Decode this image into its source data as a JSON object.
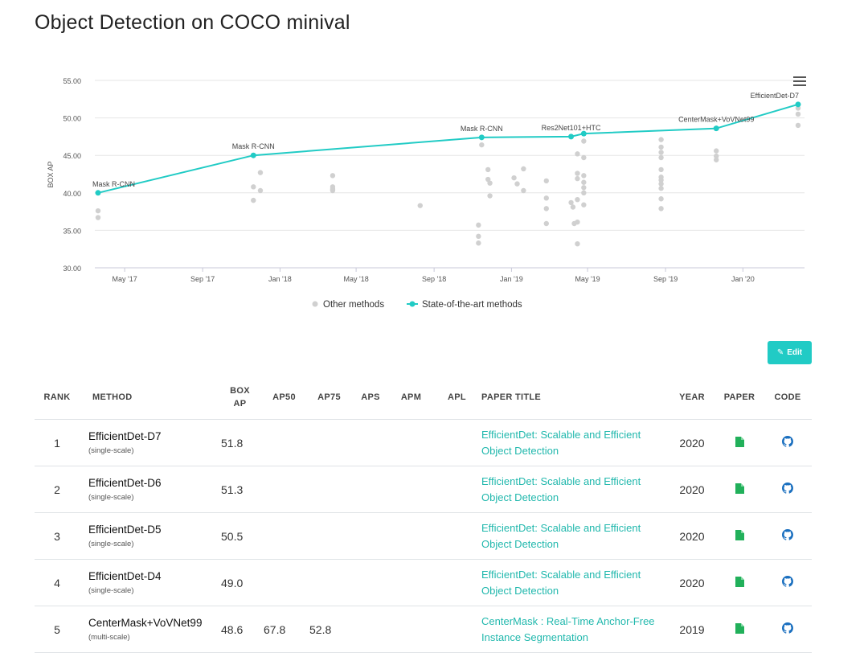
{
  "title": "Object Detection on COCO minival",
  "colors": {
    "accent": "#21cbc5",
    "link": "#21b8ad",
    "other": "#d0d0d0",
    "paper_icon": "#21b05a",
    "code_icon": "#1a6fbf"
  },
  "chart_data": {
    "type": "line",
    "ylabel": "BOX AP",
    "xlabel": "",
    "ylim": [
      30,
      55
    ],
    "yticks": [
      "30.00",
      "35.00",
      "40.00",
      "45.00",
      "50.00",
      "55.00"
    ],
    "xticks": [
      "May '17",
      "Sep '17",
      "Jan '18",
      "May '18",
      "Sep '18",
      "Jan '19",
      "May '19",
      "Sep '19",
      "Jan '20"
    ],
    "xtick_dates": [
      "2017-05-01",
      "2017-09-01",
      "2018-01-01",
      "2018-05-01",
      "2018-09-01",
      "2019-01-01",
      "2019-05-01",
      "2019-09-01",
      "2020-01-01"
    ],
    "xlim": [
      "2017-03-20",
      "2020-03-28"
    ],
    "legend_position": "bottom",
    "series": [
      {
        "name": "State-of-the-art methods",
        "points": [
          {
            "x": "2017-03-20",
            "y": 40.0,
            "label": "Mask R-CNN"
          },
          {
            "x": "2017-11-20",
            "y": 45.0,
            "label": "Mask R-CNN"
          },
          {
            "x": "2018-11-15",
            "y": 47.4,
            "label": "Mask R-CNN"
          },
          {
            "x": "2019-04-05",
            "y": 47.5,
            "label": "Res2Net101+HTC"
          },
          {
            "x": "2019-04-25",
            "y": 47.9,
            "label": ""
          },
          {
            "x": "2019-11-20",
            "y": 48.6,
            "label": "CenterMask+VoVNet99"
          },
          {
            "x": "2020-03-28",
            "y": 51.8,
            "label": "EfficientDet-D7"
          }
        ]
      },
      {
        "name": "Other methods",
        "points": [
          {
            "x": "2017-03-20",
            "y": 37.6
          },
          {
            "x": "2017-03-20",
            "y": 36.7
          },
          {
            "x": "2017-11-20",
            "y": 40.8
          },
          {
            "x": "2017-11-20",
            "y": 39.0
          },
          {
            "x": "2017-12-01",
            "y": 42.7
          },
          {
            "x": "2017-12-01",
            "y": 40.3
          },
          {
            "x": "2018-03-25",
            "y": 42.3
          },
          {
            "x": "2018-03-25",
            "y": 40.8
          },
          {
            "x": "2018-03-25",
            "y": 40.5
          },
          {
            "x": "2018-03-25",
            "y": 40.3
          },
          {
            "x": "2018-08-10",
            "y": 38.3
          },
          {
            "x": "2018-11-15",
            "y": 46.4
          },
          {
            "x": "2018-11-10",
            "y": 35.7
          },
          {
            "x": "2018-11-10",
            "y": 34.2
          },
          {
            "x": "2018-11-10",
            "y": 33.3
          },
          {
            "x": "2018-11-25",
            "y": 43.1
          },
          {
            "x": "2018-11-25",
            "y": 41.8
          },
          {
            "x": "2018-11-28",
            "y": 41.3
          },
          {
            "x": "2018-11-28",
            "y": 39.6
          },
          {
            "x": "2019-01-05",
            "y": 42.0
          },
          {
            "x": "2019-01-10",
            "y": 41.2
          },
          {
            "x": "2019-01-20",
            "y": 43.2
          },
          {
            "x": "2019-01-20",
            "y": 40.3
          },
          {
            "x": "2019-02-25",
            "y": 41.6
          },
          {
            "x": "2019-02-25",
            "y": 39.3
          },
          {
            "x": "2019-02-25",
            "y": 37.9
          },
          {
            "x": "2019-02-25",
            "y": 35.9
          },
          {
            "x": "2019-04-05",
            "y": 38.7
          },
          {
            "x": "2019-04-08",
            "y": 38.1
          },
          {
            "x": "2019-04-10",
            "y": 35.9
          },
          {
            "x": "2019-04-15",
            "y": 42.6
          },
          {
            "x": "2019-04-15",
            "y": 41.9
          },
          {
            "x": "2019-04-15",
            "y": 39.1
          },
          {
            "x": "2019-04-15",
            "y": 45.2
          },
          {
            "x": "2019-04-15",
            "y": 36.1
          },
          {
            "x": "2019-04-15",
            "y": 33.2
          },
          {
            "x": "2019-04-25",
            "y": 46.9
          },
          {
            "x": "2019-04-25",
            "y": 44.7
          },
          {
            "x": "2019-04-25",
            "y": 42.3
          },
          {
            "x": "2019-04-25",
            "y": 41.4
          },
          {
            "x": "2019-04-25",
            "y": 40.7
          },
          {
            "x": "2019-04-25",
            "y": 40.0
          },
          {
            "x": "2019-04-25",
            "y": 38.4
          },
          {
            "x": "2019-08-25",
            "y": 47.1
          },
          {
            "x": "2019-08-25",
            "y": 46.1
          },
          {
            "x": "2019-08-25",
            "y": 45.4
          },
          {
            "x": "2019-08-25",
            "y": 44.7
          },
          {
            "x": "2019-08-25",
            "y": 43.1
          },
          {
            "x": "2019-08-25",
            "y": 42.1
          },
          {
            "x": "2019-08-25",
            "y": 41.7
          },
          {
            "x": "2019-08-25",
            "y": 41.2
          },
          {
            "x": "2019-08-25",
            "y": 40.6
          },
          {
            "x": "2019-08-25",
            "y": 39.2
          },
          {
            "x": "2019-08-25",
            "y": 37.9
          },
          {
            "x": "2019-11-20",
            "y": 45.6
          },
          {
            "x": "2019-11-20",
            "y": 44.9
          },
          {
            "x": "2019-11-20",
            "y": 44.4
          },
          {
            "x": "2020-03-28",
            "y": 51.3
          },
          {
            "x": "2020-03-28",
            "y": 50.5
          },
          {
            "x": "2020-03-28",
            "y": 49.0
          }
        ]
      }
    ]
  },
  "edit_label": "Edit",
  "table": {
    "headers": {
      "rank": "RANK",
      "method": "METHOD",
      "box_ap": "BOX AP",
      "ap50": "AP50",
      "ap75": "AP75",
      "aps": "APS",
      "apm": "APM",
      "apl": "APL",
      "paper_title": "PAPER TITLE",
      "year": "YEAR",
      "paper": "PAPER",
      "code": "CODE"
    },
    "rows": [
      {
        "rank": "1",
        "method": "EfficientDet-D7",
        "method_sub": "(single-scale)",
        "box_ap": "51.8",
        "ap50": "",
        "ap75": "",
        "aps": "",
        "apm": "",
        "apl": "",
        "paper_title": "EfficientDet: Scalable and Efficient Object Detection",
        "year": "2020"
      },
      {
        "rank": "2",
        "method": "EfficientDet-D6",
        "method_sub": "(single-scale)",
        "box_ap": "51.3",
        "ap50": "",
        "ap75": "",
        "aps": "",
        "apm": "",
        "apl": "",
        "paper_title": "EfficientDet: Scalable and Efficient Object Detection",
        "year": "2020"
      },
      {
        "rank": "3",
        "method": "EfficientDet-D5",
        "method_sub": "(single-scale)",
        "box_ap": "50.5",
        "ap50": "",
        "ap75": "",
        "aps": "",
        "apm": "",
        "apl": "",
        "paper_title": "EfficientDet: Scalable and Efficient Object Detection",
        "year": "2020"
      },
      {
        "rank": "4",
        "method": "EfficientDet-D4",
        "method_sub": "(single-scale)",
        "box_ap": "49.0",
        "ap50": "",
        "ap75": "",
        "aps": "",
        "apm": "",
        "apl": "",
        "paper_title": "EfficientDet: Scalable and Efficient Object Detection",
        "year": "2020"
      },
      {
        "rank": "5",
        "method": "CenterMask+VoVNet99",
        "method_sub": "(multi-scale)",
        "box_ap": "48.6",
        "ap50": "67.8",
        "ap75": "52.8",
        "aps": "",
        "apm": "",
        "apl": "",
        "paper_title": "CenterMask : Real-Time Anchor-Free Instance Segmentation",
        "year": "2019"
      }
    ]
  }
}
